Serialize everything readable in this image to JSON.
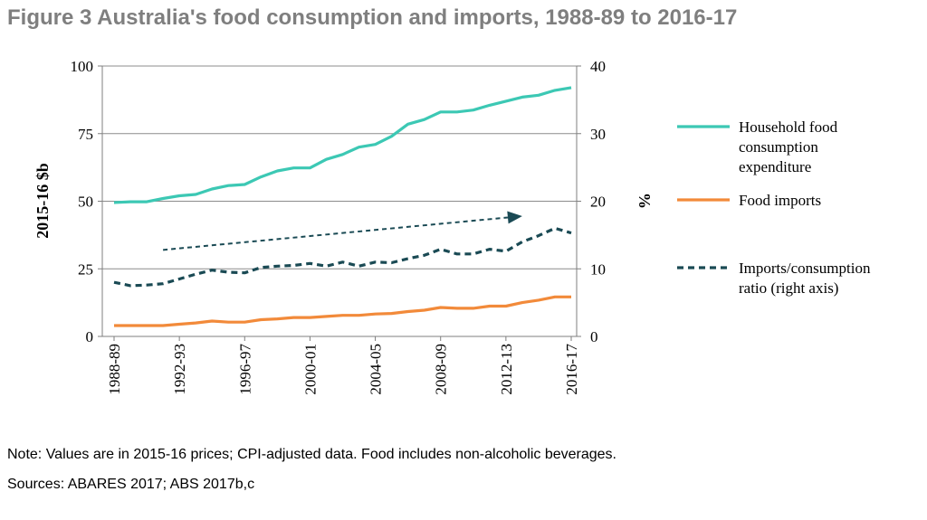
{
  "figure": {
    "title": "Figure 3 Australia's food consumption and imports, 1988-89 to 2016-17",
    "note": "Note: Values are in 2015-16 prices; CPI-adjusted data. Food includes non-alcoholic beverages.",
    "sources": "Sources: ABARES 2017; ABS 2017b,c"
  },
  "chart_data": {
    "type": "line",
    "title": "Figure 3 Australia's food consumption and imports, 1988-89 to 2016-17",
    "ylabel": "2015-16 $b",
    "y2label": "%",
    "ylim": [
      0,
      100
    ],
    "y2lim": [
      0,
      40
    ],
    "yticks": [
      "0",
      "25",
      "50",
      "75",
      "100"
    ],
    "y2ticks": [
      "0",
      "10",
      "20",
      "30",
      "40"
    ],
    "grid": "horizontal",
    "legend_position": "right",
    "x_tick_labels": [
      "1988-89",
      "1992-93",
      "1996-97",
      "2000-01",
      "2004-05",
      "2008-09",
      "2012-13",
      "2016-17"
    ],
    "x": [
      "1988-89",
      "1989-90",
      "1990-91",
      "1991-92",
      "1992-93",
      "1993-94",
      "1994-95",
      "1995-96",
      "1996-97",
      "1997-98",
      "1998-99",
      "1999-00",
      "2000-01",
      "2001-02",
      "2002-03",
      "2003-04",
      "2004-05",
      "2005-06",
      "2006-07",
      "2007-08",
      "2008-09",
      "2009-10",
      "2010-11",
      "2011-12",
      "2012-13",
      "2013-14",
      "2014-15",
      "2015-16",
      "2016-17"
    ],
    "series": [
      {
        "name": "Household food consumption expenditure",
        "axis": "left",
        "color": "#3cc8b4",
        "style": "solid",
        "values": [
          49.5,
          49.8,
          49.8,
          51,
          52,
          52.5,
          54.5,
          55.8,
          56.2,
          59,
          61.2,
          62.3,
          62.3,
          65.5,
          67.3,
          70,
          71,
          74,
          78.5,
          80.2,
          83,
          83,
          83.7,
          85.5,
          87,
          88.5,
          89.2,
          91,
          92
        ]
      },
      {
        "name": "Food imports",
        "axis": "left",
        "color": "#f28a3a",
        "style": "solid",
        "values": [
          4,
          4,
          4,
          4,
          4.5,
          5,
          5.7,
          5.3,
          5.3,
          6.2,
          6.5,
          7,
          7,
          7.4,
          7.8,
          7.8,
          8.3,
          8.5,
          9.2,
          9.7,
          10.7,
          10.4,
          10.4,
          11.2,
          11.2,
          12.5,
          13.4,
          14.6,
          14.6
        ]
      },
      {
        "name": "Imports/consumption ratio (right axis)",
        "axis": "right",
        "color": "#1a4a54",
        "style": "dashed",
        "values": [
          8,
          7.5,
          7.6,
          7.8,
          8.5,
          9.2,
          9.8,
          9.5,
          9.4,
          10.2,
          10.4,
          10.5,
          10.8,
          10.4,
          11,
          10.4,
          11,
          10.9,
          11.5,
          12,
          12.9,
          12.2,
          12.2,
          12.9,
          12.6,
          14,
          14.9,
          16,
          15.3
        ]
      }
    ],
    "annotations": [
      {
        "type": "trend-arrow",
        "color": "#1a4a54",
        "from": {
          "x": "1991-92",
          "y2": 12.8
        },
        "to": {
          "x": "2013-14",
          "y2": 17.8
        }
      }
    ]
  }
}
